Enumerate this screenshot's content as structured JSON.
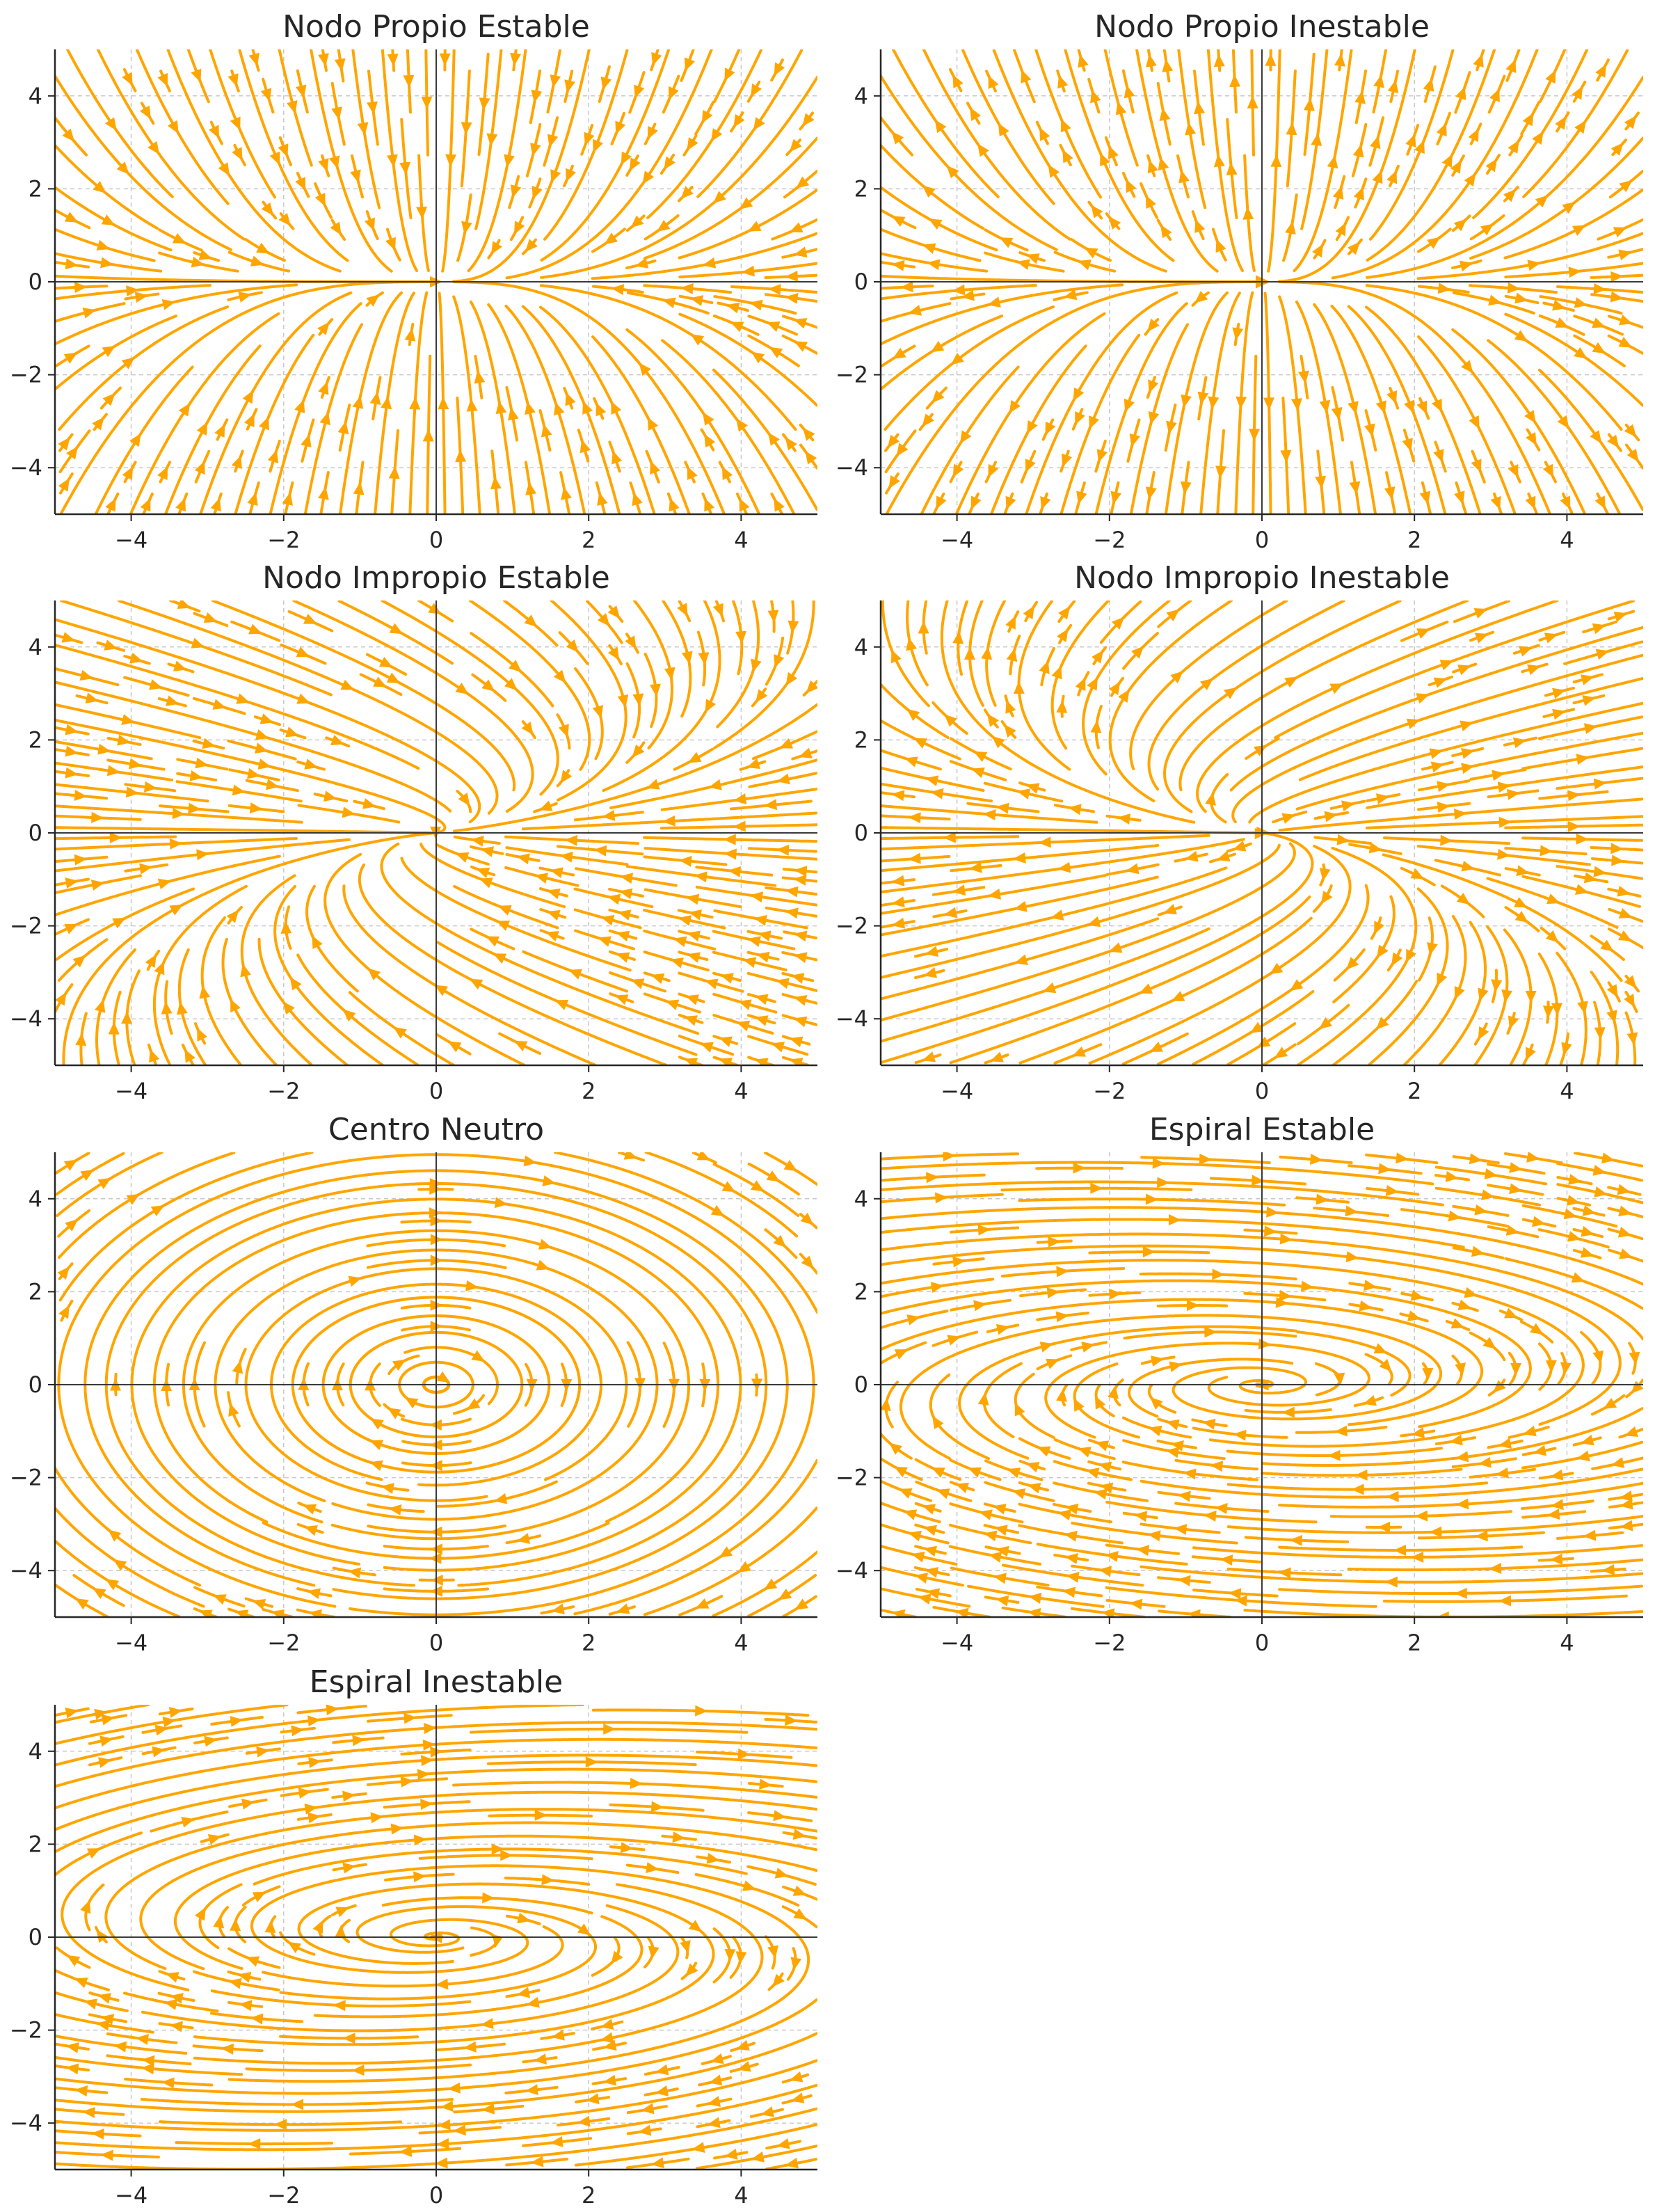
{
  "colors": {
    "stream": "#FFA500",
    "grid": "#c8c8c8",
    "axis": "#262626",
    "zero_line": "#3a3a3a"
  },
  "chart_data": [
    {
      "type": "streamplot",
      "title": "Nodo Propio Estable",
      "xlim": [
        -5,
        5
      ],
      "ylim": [
        -5,
        5
      ],
      "xticks": [
        -4,
        -2,
        0,
        2,
        4
      ],
      "yticks": [
        -4,
        -2,
        0,
        2,
        4
      ],
      "xtick_labels": [
        "−4",
        "−2",
        "0",
        "2",
        "4"
      ],
      "ytick_labels": [
        "−4",
        "−2",
        "0",
        "2",
        "4"
      ],
      "grid": true,
      "zero_lines": true,
      "system": {
        "a": -1,
        "b": 0,
        "c": 0,
        "d": -3
      }
    },
    {
      "type": "streamplot",
      "title": "Nodo Propio Inestable",
      "xlim": [
        -5,
        5
      ],
      "ylim": [
        -5,
        5
      ],
      "xticks": [
        -4,
        -2,
        0,
        2,
        4
      ],
      "yticks": [
        -4,
        -2,
        0,
        2,
        4
      ],
      "xtick_labels": [
        "−4",
        "−2",
        "0",
        "2",
        "4"
      ],
      "ytick_labels": [
        "−4",
        "−2",
        "0",
        "2",
        "4"
      ],
      "grid": true,
      "zero_lines": true,
      "system": {
        "a": 1,
        "b": 0,
        "c": 0,
        "d": 3
      }
    },
    {
      "type": "streamplot",
      "title": "Nodo Impropio Estable",
      "xlim": [
        -5,
        5
      ],
      "ylim": [
        -5,
        5
      ],
      "xticks": [
        -4,
        -2,
        0,
        2,
        4
      ],
      "yticks": [
        -4,
        -2,
        0,
        2,
        4
      ],
      "xtick_labels": [
        "−4",
        "−2",
        "0",
        "2",
        "4"
      ],
      "ytick_labels": [
        "−4",
        "−2",
        "0",
        "2",
        "4"
      ],
      "grid": true,
      "zero_lines": true,
      "system": {
        "a": -1,
        "b": 1,
        "c": 0,
        "d": -1
      }
    },
    {
      "type": "streamplot",
      "title": "Nodo Impropio Inestable",
      "xlim": [
        -5,
        5
      ],
      "ylim": [
        -5,
        5
      ],
      "xticks": [
        -4,
        -2,
        0,
        2,
        4
      ],
      "yticks": [
        -4,
        -2,
        0,
        2,
        4
      ],
      "xtick_labels": [
        "−4",
        "−2",
        "0",
        "2",
        "4"
      ],
      "ytick_labels": [
        "−4",
        "−2",
        "0",
        "2",
        "4"
      ],
      "grid": true,
      "zero_lines": true,
      "system": {
        "a": 1,
        "b": 1,
        "c": 0,
        "d": 1
      }
    },
    {
      "type": "streamplot",
      "title": "Centro Neutro",
      "xlim": [
        -5,
        5
      ],
      "ylim": [
        -5,
        5
      ],
      "xticks": [
        -4,
        -2,
        0,
        2,
        4
      ],
      "yticks": [
        -4,
        -2,
        0,
        2,
        4
      ],
      "xtick_labels": [
        "−4",
        "−2",
        "0",
        "2",
        "4"
      ],
      "ytick_labels": [
        "−4",
        "−2",
        "0",
        "2",
        "4"
      ],
      "grid": true,
      "zero_lines": true,
      "system": {
        "a": 0,
        "b": 1,
        "c": -1,
        "d": 0
      }
    },
    {
      "type": "streamplot",
      "title": "Espiral Estable",
      "xlim": [
        -5,
        5
      ],
      "ylim": [
        -5,
        5
      ],
      "xticks": [
        -4,
        -2,
        0,
        2,
        4
      ],
      "yticks": [
        -4,
        -2,
        0,
        2,
        4
      ],
      "xtick_labels": [
        "−4",
        "−2",
        "0",
        "2",
        "4"
      ],
      "ytick_labels": [
        "−4",
        "−2",
        "0",
        "2",
        "4"
      ],
      "grid": true,
      "zero_lines": true,
      "system": {
        "a": -0.5,
        "b": 5,
        "c": -1,
        "d": -0.5
      }
    },
    {
      "type": "streamplot",
      "title": "Espiral Inestable",
      "xlim": [
        -5,
        5
      ],
      "ylim": [
        -5,
        5
      ],
      "xticks": [
        -4,
        -2,
        0,
        2,
        4
      ],
      "yticks": [
        -4,
        -2,
        0,
        2,
        4
      ],
      "xtick_labels": [
        "−4",
        "−2",
        "0",
        "2",
        "4"
      ],
      "ytick_labels": [
        "−4",
        "−2",
        "0",
        "2",
        "4"
      ],
      "grid": true,
      "zero_lines": true,
      "system": {
        "a": 0.5,
        "b": 5,
        "c": -1,
        "d": 0.5
      }
    }
  ]
}
